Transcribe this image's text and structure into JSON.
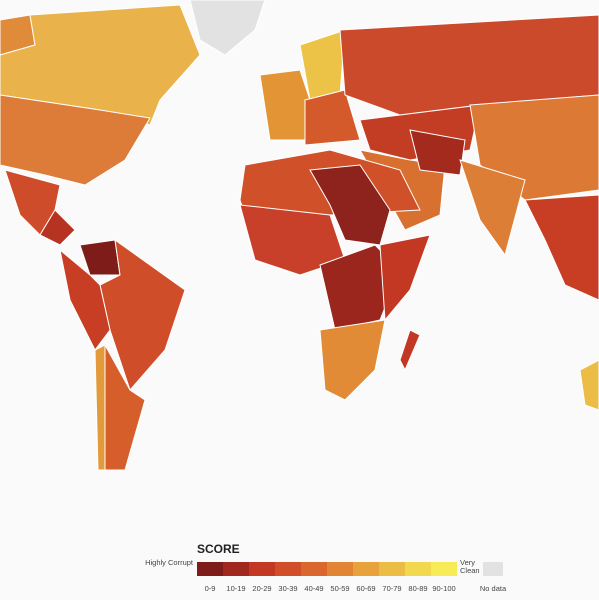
{
  "legend": {
    "title": "SCORE",
    "low_label": "Highly Corrupt",
    "high_label": "Very Clean",
    "no_data_label": "No data",
    "no_data_color": "#e2e2e2",
    "bins": [
      {
        "label": "0-9",
        "color": "#7e1c1a"
      },
      {
        "label": "10-19",
        "color": "#a0281e"
      },
      {
        "label": "20-29",
        "color": "#c23823"
      },
      {
        "label": "30-39",
        "color": "#d04e29"
      },
      {
        "label": "40-49",
        "color": "#da672d"
      },
      {
        "label": "50-59",
        "color": "#e18534"
      },
      {
        "label": "60-69",
        "color": "#e7a23c"
      },
      {
        "label": "70-79",
        "color": "#ecbd45"
      },
      {
        "label": "80-89",
        "color": "#f2d84e"
      },
      {
        "label": "90-100",
        "color": "#f7ec58"
      }
    ]
  }
}
